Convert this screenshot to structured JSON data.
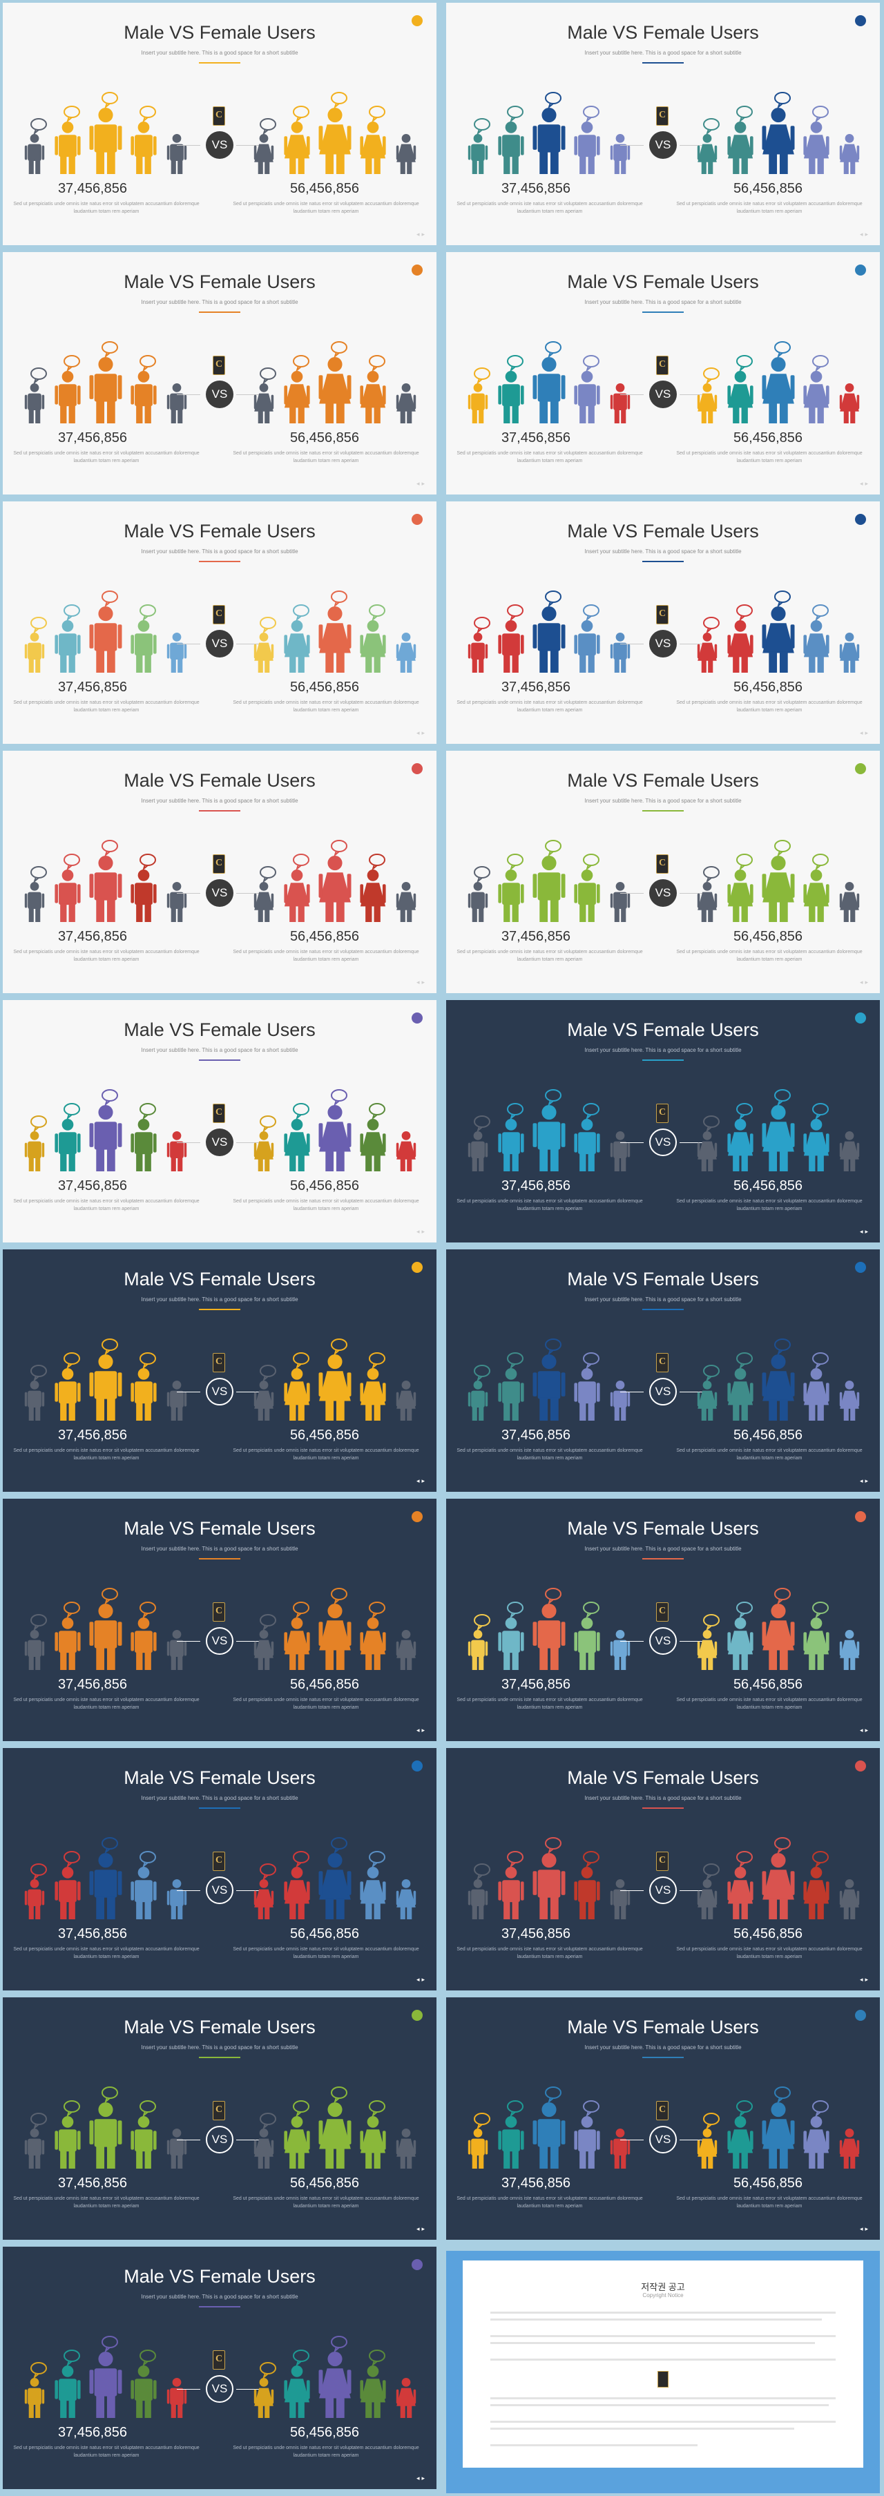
{
  "slide": {
    "title": "Male VS Female Users",
    "subtitle": "Insert your subtitle here. This is a good space for a short subtitle",
    "vs_label": "VS",
    "male_count": "37,456,856",
    "female_count": "56,456,856",
    "male_desc": "Sed ut perspiciatis unde omnis iste natus error sit voluptatem accusantium doloremque laudantium totam rem aperiam",
    "female_desc": "Sed ut perspiciatis unde omnis iste natus error sit voluptatem accusantium doloremque laudantium totam rem aperiam",
    "logo_letter": "C"
  },
  "slides": [
    {
      "theme": "light",
      "accent": "#f2b01e",
      "palette": [
        "#5a6270",
        "#f2b01e",
        "#f2b01e",
        "#f2b01e",
        "#5a6270"
      ]
    },
    {
      "theme": "light",
      "accent": "#1d4f91",
      "palette": [
        "#3f8c8a",
        "#3f8c8a",
        "#1d4f91",
        "#7a86c4",
        "#7a86c4"
      ]
    },
    {
      "theme": "light",
      "accent": "#e58226",
      "palette": [
        "#5a6270",
        "#e58226",
        "#e58226",
        "#e58226",
        "#5a6270"
      ]
    },
    {
      "theme": "light",
      "accent": "#2f7fb8",
      "palette": [
        "#f2b01e",
        "#1e9a94",
        "#2f7fb8",
        "#7a86c4",
        "#d23a3a"
      ]
    },
    {
      "theme": "light",
      "accent": "#e4684a",
      "palette": [
        "#f2c94c",
        "#6fb7c7",
        "#e4684a",
        "#8bc37a",
        "#6fa8d6"
      ]
    },
    {
      "theme": "light",
      "accent": "#1d4f91",
      "palette": [
        "#d23a3a",
        "#d23a3a",
        "#1d4f91",
        "#5a8fc4",
        "#5a8fc4"
      ]
    },
    {
      "theme": "light",
      "accent": "#d9534f",
      "palette": [
        "#5a6270",
        "#d9534f",
        "#d9534f",
        "#c0392b",
        "#5a6270"
      ]
    },
    {
      "theme": "light",
      "accent": "#8ab83a",
      "palette": [
        "#5a6270",
        "#8ab83a",
        "#8ab83a",
        "#8ab83a",
        "#5a6270"
      ]
    },
    {
      "theme": "light",
      "accent": "#6a5fb0",
      "palette": [
        "#d6a21e",
        "#1e9a94",
        "#6a5fb0",
        "#5a8a3a",
        "#d23a3a"
      ]
    },
    {
      "theme": "dark",
      "accent": "#2aa1c9",
      "palette": [
        "#5a6270",
        "#2aa1c9",
        "#2aa1c9",
        "#2aa1c9",
        "#5a6270"
      ]
    },
    {
      "theme": "dark",
      "accent": "#f2b01e",
      "palette": [
        "#5a6270",
        "#f2b01e",
        "#f2b01e",
        "#f2b01e",
        "#5a6270"
      ]
    },
    {
      "theme": "dark",
      "accent": "#1d6fb8",
      "palette": [
        "#3f8c8a",
        "#3f8c8a",
        "#1d4f91",
        "#7a86c4",
        "#7a86c4"
      ]
    },
    {
      "theme": "dark",
      "accent": "#e58226",
      "palette": [
        "#5a6270",
        "#e58226",
        "#e58226",
        "#e58226",
        "#5a6270"
      ]
    },
    {
      "theme": "dark",
      "accent": "#e4684a",
      "palette": [
        "#f2c94c",
        "#6fb7c7",
        "#e4684a",
        "#8bc37a",
        "#6fa8d6"
      ]
    },
    {
      "theme": "dark",
      "accent": "#1d6fb8",
      "palette": [
        "#d23a3a",
        "#d23a3a",
        "#1d4f91",
        "#5a8fc4",
        "#5a8fc4"
      ]
    },
    {
      "theme": "dark",
      "accent": "#d9534f",
      "palette": [
        "#5a6270",
        "#d9534f",
        "#d9534f",
        "#c0392b",
        "#5a6270"
      ]
    },
    {
      "theme": "dark",
      "accent": "#8ab83a",
      "palette": [
        "#5a6270",
        "#8ab83a",
        "#8ab83a",
        "#8ab83a",
        "#5a6270"
      ]
    },
    {
      "theme": "dark",
      "accent": "#2f7fb8",
      "palette": [
        "#f2b01e",
        "#1e9a94",
        "#2f7fb8",
        "#7a86c4",
        "#d23a3a"
      ]
    },
    {
      "theme": "dark",
      "accent": "#6a5fb0",
      "palette": [
        "#d6a21e",
        "#1e9a94",
        "#6a5fb0",
        "#5a8a3a",
        "#d23a3a"
      ]
    }
  ],
  "copyright": {
    "title": "저작권 공고",
    "subtitle": "Copyright Notice"
  }
}
